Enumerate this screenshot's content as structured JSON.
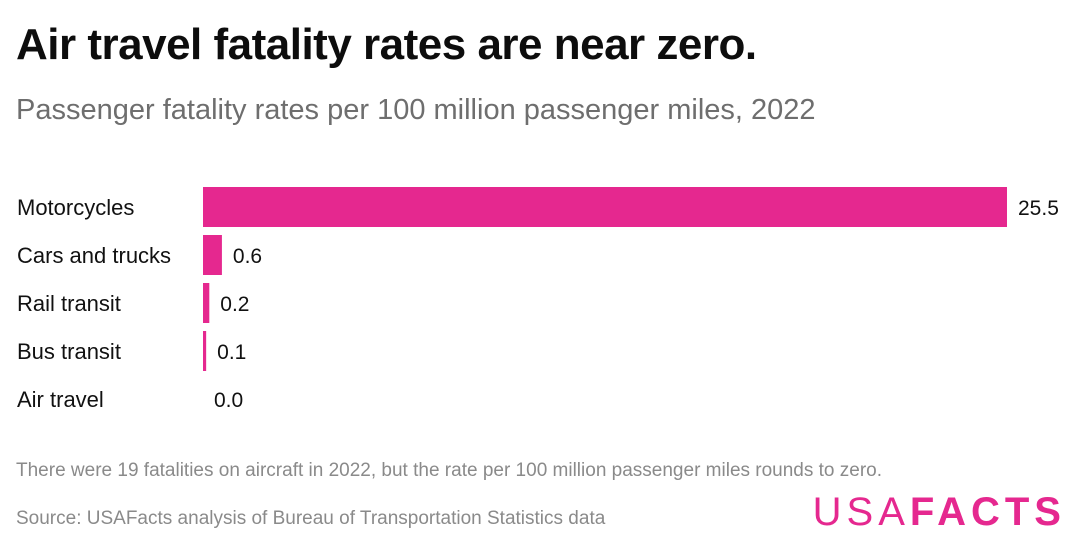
{
  "title": "Air travel fatality rates are near zero.",
  "subtitle": "Passenger fatality rates per 100 million passenger miles, 2022",
  "note": "There were 19 fatalities on aircraft in 2022, but the rate per 100 million passenger miles rounds to zero.",
  "source": "Source: USAFacts analysis of Bureau of Transportation Statistics data",
  "logo": {
    "part1": "USA",
    "part2": "FACTS"
  },
  "colors": {
    "bar": "#e5288f",
    "brand": "#e5288f"
  },
  "chart_data": {
    "type": "bar",
    "orientation": "horizontal",
    "categories": [
      "Motorcycles",
      "Cars and trucks",
      "Rail transit",
      "Bus transit",
      "Air travel"
    ],
    "values": [
      25.5,
      0.6,
      0.2,
      0.1,
      0.0
    ],
    "value_labels": [
      "25.5",
      "0.6",
      "0.2",
      "0.1",
      "0.0"
    ],
    "xlim": [
      0,
      25.5
    ],
    "grid": false,
    "legend": "none"
  }
}
